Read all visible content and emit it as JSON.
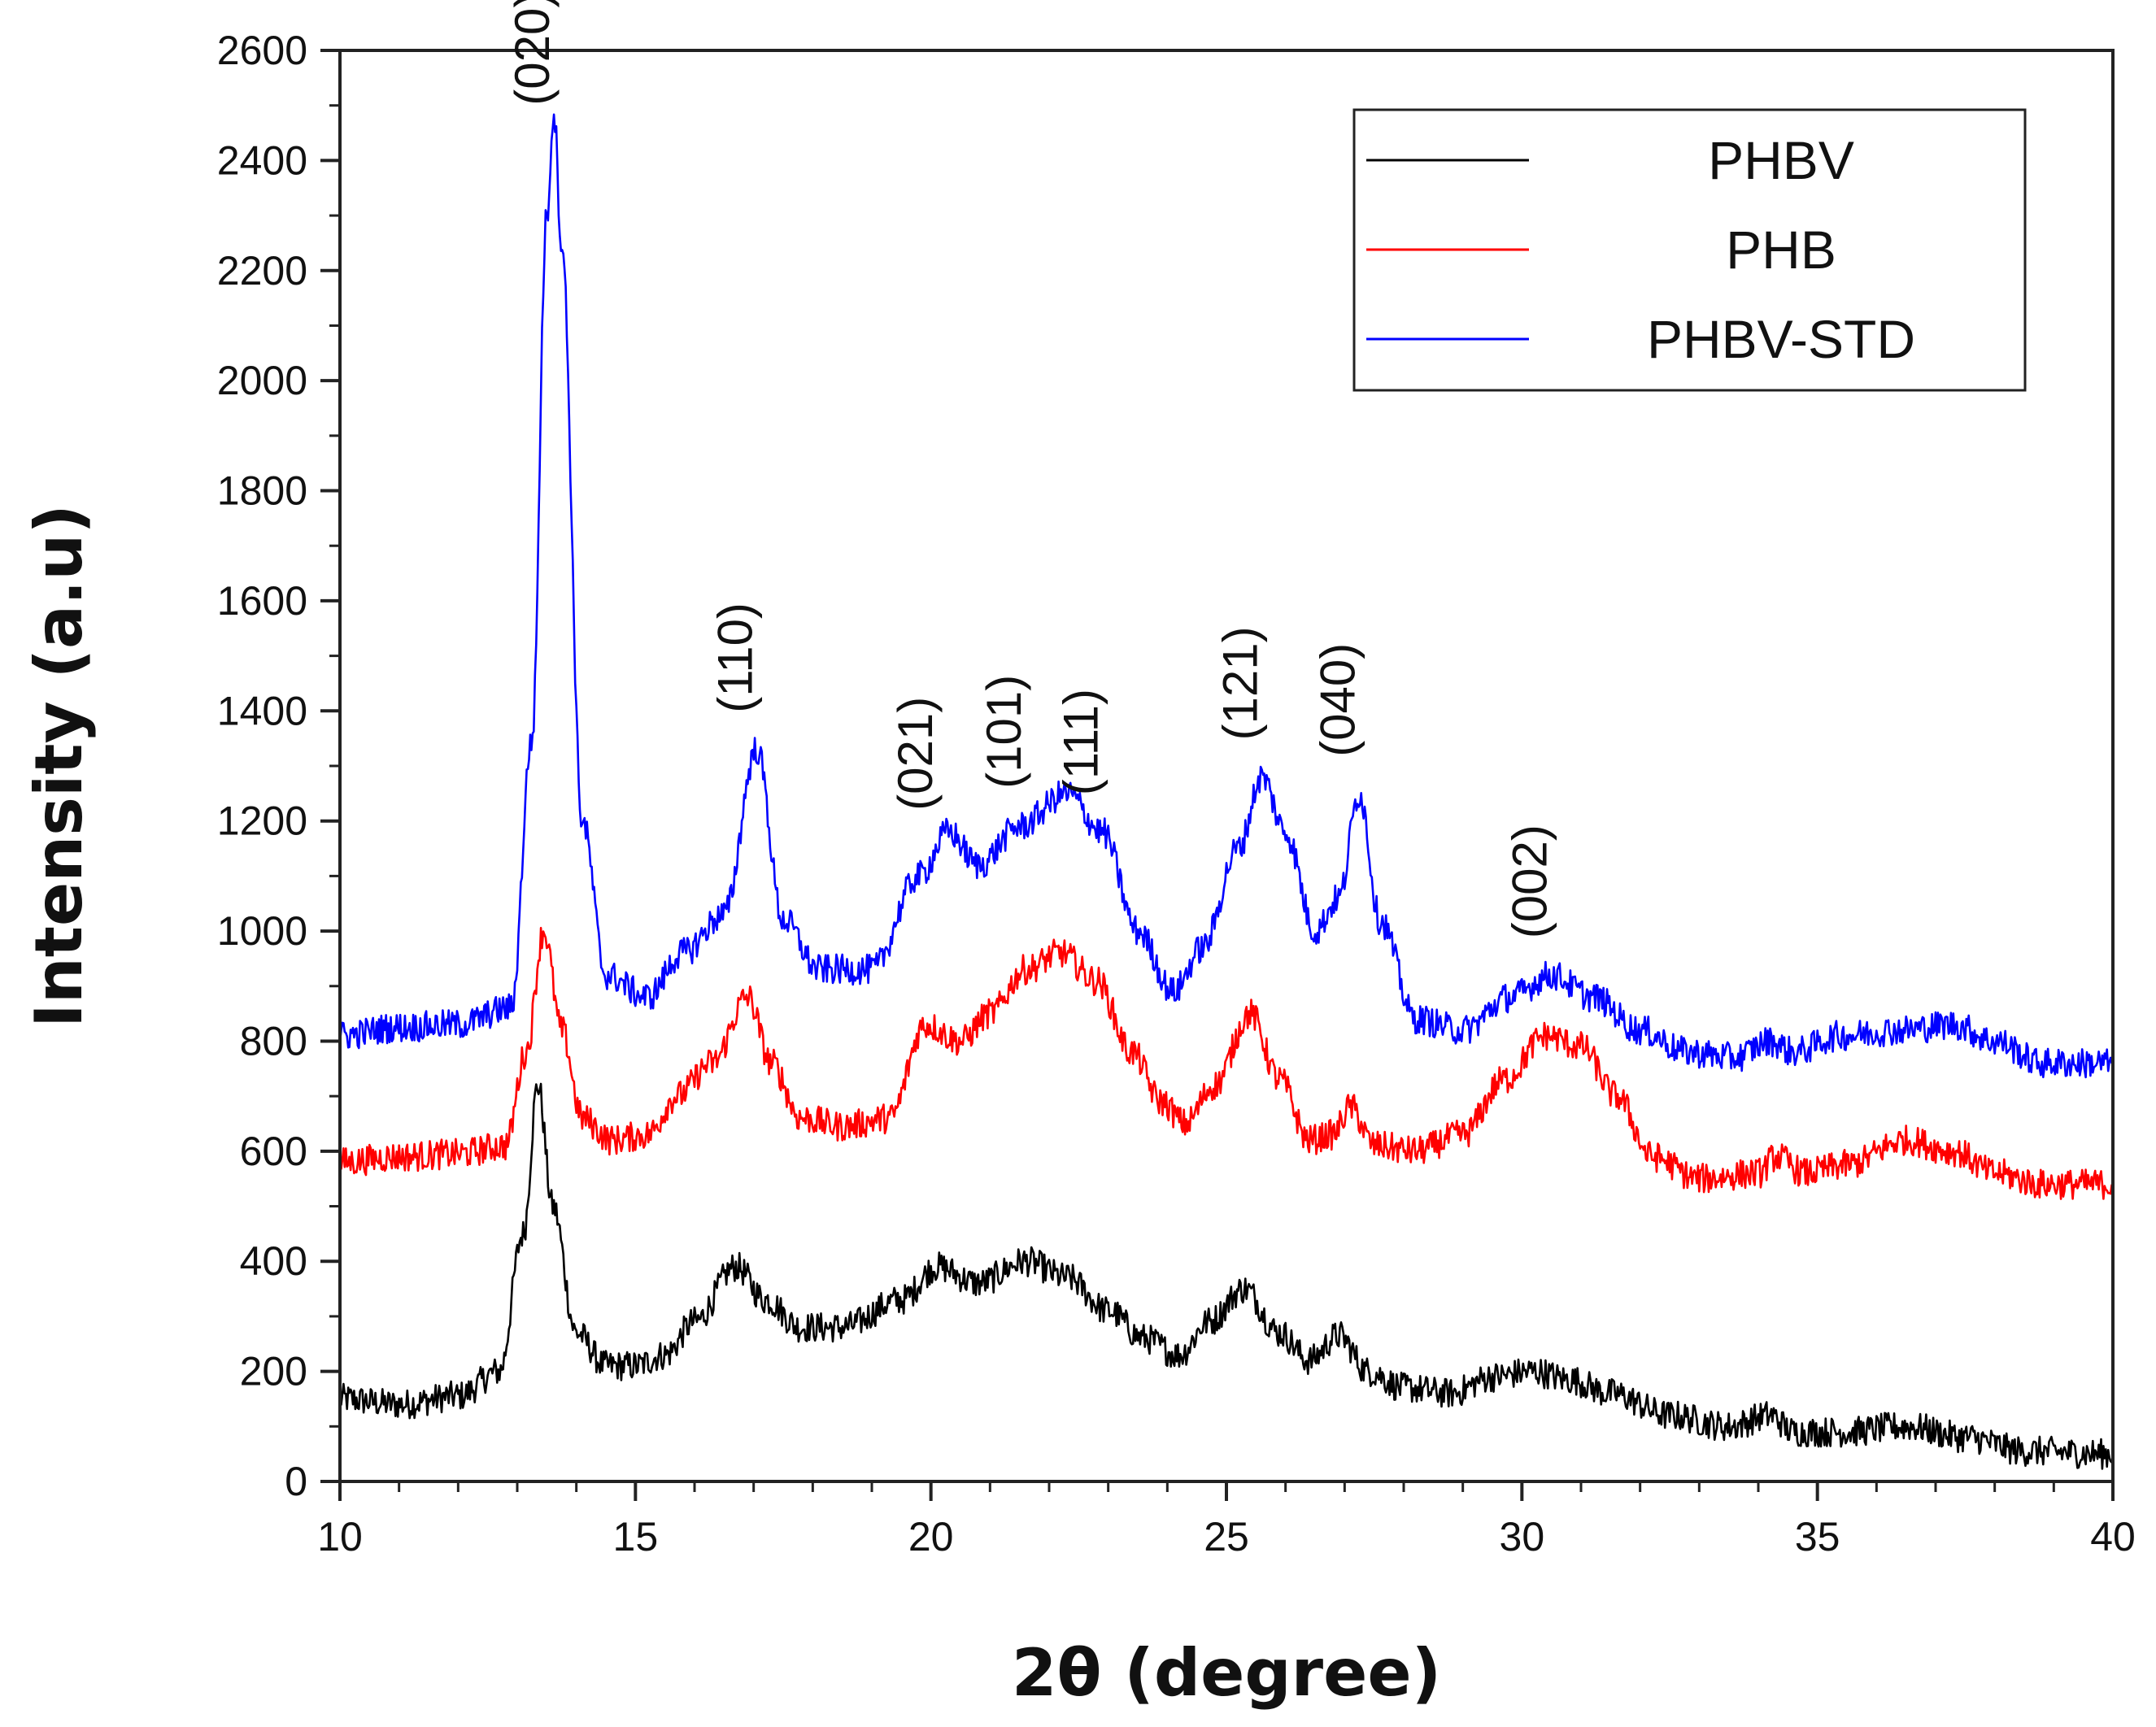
{
  "chart_data": {
    "type": "line",
    "title": "",
    "xlabel": "2θ (degree)",
    "ylabel": "Intensity (a.u)",
    "xlim": [
      10,
      40
    ],
    "ylim": [
      0,
      2600
    ],
    "x_ticks": [
      10,
      15,
      20,
      25,
      30,
      35,
      40
    ],
    "y_ticks": [
      0,
      200,
      400,
      600,
      800,
      1000,
      1200,
      1400,
      1600,
      1800,
      2000,
      2200,
      2400,
      2600
    ],
    "grid": false,
    "legend_position": "top-right",
    "series": [
      {
        "name": "PHBV",
        "color": "#000000",
        "points": [
          [
            10,
            150
          ],
          [
            11,
            140
          ],
          [
            12,
            155
          ],
          [
            12.7,
            200
          ],
          [
            13.1,
            450
          ],
          [
            13.35,
            720
          ],
          [
            13.6,
            500
          ],
          [
            14,
            270
          ],
          [
            14.5,
            210
          ],
          [
            15,
            210
          ],
          [
            15.5,
            230
          ],
          [
            16,
            290
          ],
          [
            16.7,
            390
          ],
          [
            17.2,
            330
          ],
          [
            17.8,
            280
          ],
          [
            18.5,
            280
          ],
          [
            19.5,
            330
          ],
          [
            20.1,
            390
          ],
          [
            20.8,
            360
          ],
          [
            21.6,
            400
          ],
          [
            22.3,
            370
          ],
          [
            23,
            310
          ],
          [
            23.6,
            260
          ],
          [
            24.2,
            230
          ],
          [
            24.7,
            290
          ],
          [
            25.3,
            350
          ],
          [
            25.9,
            270
          ],
          [
            26.4,
            220
          ],
          [
            26.9,
            265
          ],
          [
            27.4,
            200
          ],
          [
            28,
            170
          ],
          [
            28.8,
            160
          ],
          [
            29.5,
            190
          ],
          [
            30.2,
            200
          ],
          [
            30.8,
            185
          ],
          [
            31.5,
            160
          ],
          [
            32.5,
            120
          ],
          [
            33.5,
            100
          ],
          [
            34.2,
            120
          ],
          [
            34.6,
            90
          ],
          [
            35.5,
            90
          ],
          [
            36.5,
            100
          ],
          [
            37.5,
            80
          ],
          [
            38.5,
            55
          ],
          [
            40,
            50
          ]
        ]
      },
      {
        "name": "PHB",
        "color": "#ff0000",
        "points": [
          [
            10,
            580
          ],
          [
            11,
            590
          ],
          [
            12,
            595
          ],
          [
            12.8,
            610
          ],
          [
            13.15,
            780
          ],
          [
            13.45,
            1000
          ],
          [
            13.75,
            820
          ],
          [
            14.1,
            660
          ],
          [
            14.6,
            620
          ],
          [
            15.2,
            630
          ],
          [
            15.7,
            700
          ],
          [
            16.3,
            760
          ],
          [
            16.9,
            880
          ],
          [
            17.3,
            760
          ],
          [
            17.8,
            660
          ],
          [
            18.5,
            645
          ],
          [
            19.3,
            660
          ],
          [
            19.9,
            830
          ],
          [
            20.5,
            800
          ],
          [
            21,
            850
          ],
          [
            21.6,
            930
          ],
          [
            22.2,
            960
          ],
          [
            22.8,
            910
          ],
          [
            23.4,
            780
          ],
          [
            23.9,
            690
          ],
          [
            24.3,
            650
          ],
          [
            24.8,
            720
          ],
          [
            25.4,
            850
          ],
          [
            25.9,
            730
          ],
          [
            26.4,
            620
          ],
          [
            26.8,
            630
          ],
          [
            27.1,
            680
          ],
          [
            27.5,
            610
          ],
          [
            28.2,
            600
          ],
          [
            29,
            630
          ],
          [
            29.7,
            730
          ],
          [
            30.4,
            810
          ],
          [
            31,
            790
          ],
          [
            31.6,
            700
          ],
          [
            32.2,
            590
          ],
          [
            33,
            550
          ],
          [
            34,
            560
          ],
          [
            34.3,
            590
          ],
          [
            34.8,
            560
          ],
          [
            35.5,
            575
          ],
          [
            36.5,
            620
          ],
          [
            37.3,
            600
          ],
          [
            38,
            560
          ],
          [
            38.8,
            540
          ],
          [
            40,
            540
          ]
        ]
      },
      {
        "name": "PHBV-STD",
        "color": "#0000ff",
        "points": [
          [
            10,
            810
          ],
          [
            11,
            825
          ],
          [
            12,
            830
          ],
          [
            12.9,
            860
          ],
          [
            13.25,
            1350
          ],
          [
            13.5,
            2300
          ],
          [
            13.62,
            2490
          ],
          [
            13.75,
            2250
          ],
          [
            14.1,
            1200
          ],
          [
            14.5,
            920
          ],
          [
            15.2,
            880
          ],
          [
            15.8,
            960
          ],
          [
            16.5,
            1030
          ],
          [
            17.05,
            1330
          ],
          [
            17.5,
            1020
          ],
          [
            18.1,
            930
          ],
          [
            19,
            930
          ],
          [
            19.8,
            1100
          ],
          [
            20.3,
            1180
          ],
          [
            20.8,
            1120
          ],
          [
            21.5,
            1190
          ],
          [
            22.3,
            1250
          ],
          [
            22.9,
            1180
          ],
          [
            23.5,
            1000
          ],
          [
            24.1,
            890
          ],
          [
            24.6,
            970
          ],
          [
            25.2,
            1150
          ],
          [
            25.6,
            1280
          ],
          [
            26,
            1180
          ],
          [
            26.5,
            1000
          ],
          [
            26.9,
            1060
          ],
          [
            27.25,
            1250
          ],
          [
            27.6,
            1020
          ],
          [
            28.2,
            840
          ],
          [
            29,
            820
          ],
          [
            29.8,
            880
          ],
          [
            30.5,
            920
          ],
          [
            31.2,
            880
          ],
          [
            32,
            820
          ],
          [
            32.8,
            780
          ],
          [
            33.6,
            770
          ],
          [
            34.2,
            800
          ],
          [
            34.6,
            780
          ],
          [
            35.4,
            810
          ],
          [
            36.4,
            820
          ],
          [
            37.3,
            830
          ],
          [
            38,
            800
          ],
          [
            38.8,
            760
          ],
          [
            40,
            760
          ]
        ]
      }
    ],
    "annotations": [
      {
        "label": "(020)",
        "x": 13.62
      },
      {
        "label": "(110)",
        "x": 17.05
      },
      {
        "label": "(021)",
        "x": 20.1
      },
      {
        "label": "(101)",
        "x": 21.6
      },
      {
        "label": "(111)",
        "x": 22.9
      },
      {
        "label": "(121)",
        "x": 25.6
      },
      {
        "label": "(040)",
        "x": 27.25
      },
      {
        "label": "(002)",
        "x": 30.5
      }
    ]
  }
}
